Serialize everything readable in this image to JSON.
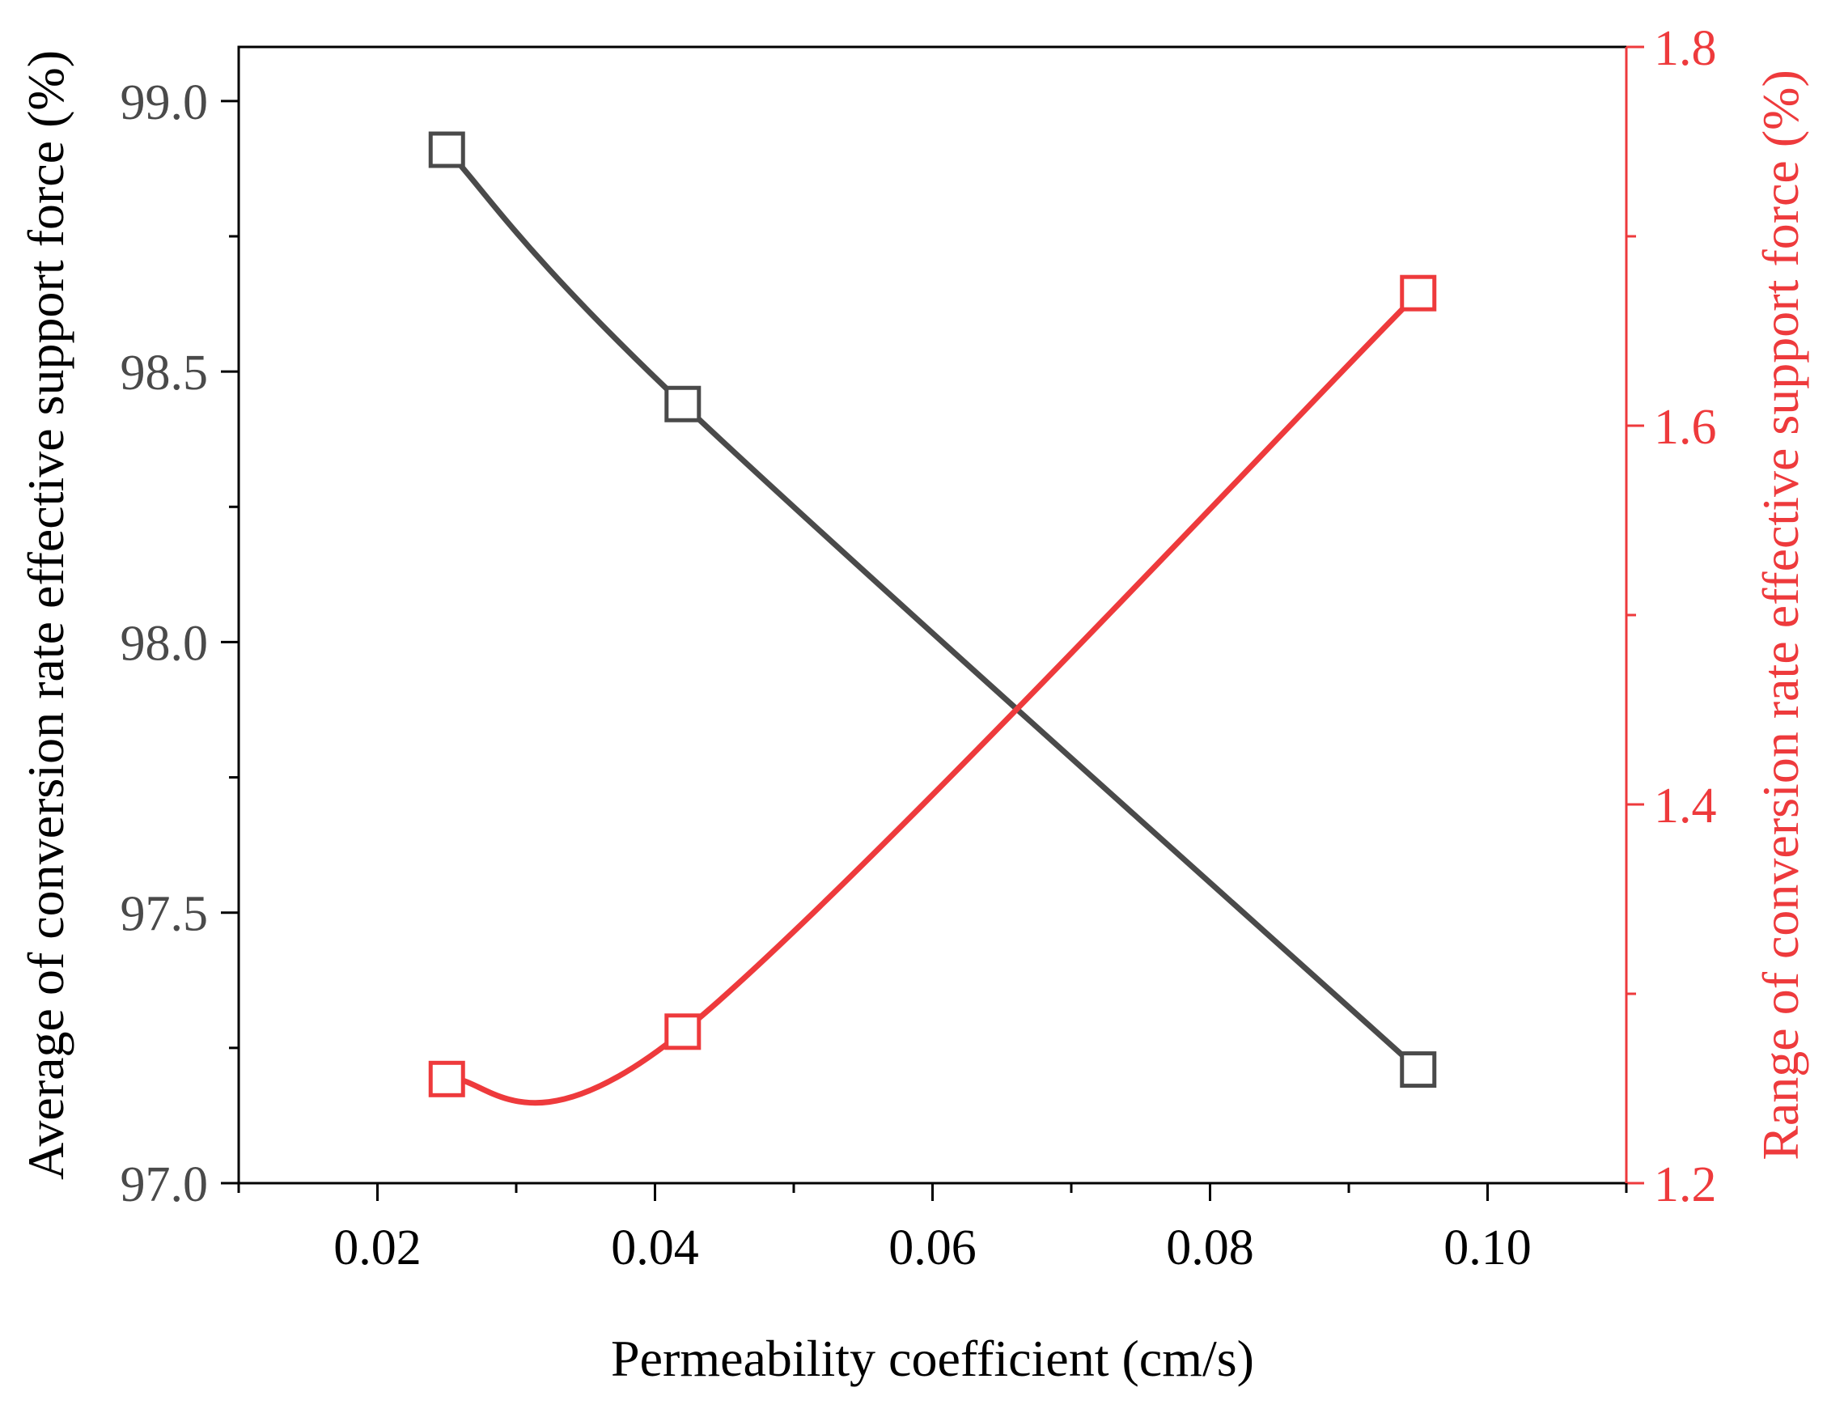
{
  "chart_data": {
    "type": "line",
    "title": "",
    "xlabel": "Permeability coefficient (cm/s)",
    "xlim": [
      0.01,
      0.11
    ],
    "x_ticks": [
      0.02,
      0.04,
      0.06,
      0.08,
      0.1
    ],
    "x_tick_labels": [
      "0.02",
      "0.04",
      "0.06",
      "0.08",
      "0.10"
    ],
    "y_left": {
      "label": "Average of conversion rate effective support force (%)",
      "lim": [
        97.0,
        99.1
      ],
      "ticks": [
        97.0,
        97.5,
        98.0,
        98.5,
        99.0
      ],
      "tick_labels": [
        "97.0",
        "97.5",
        "98.0",
        "98.5",
        "99.0"
      ],
      "color": "#4a4a4a"
    },
    "y_right": {
      "label": "Range of conversion rate effective support force (%)",
      "lim": [
        1.2,
        1.8
      ],
      "ticks": [
        1.2,
        1.4,
        1.6,
        1.8
      ],
      "tick_labels": [
        "1.2",
        "1.4",
        "1.6",
        "1.8"
      ],
      "color": "#ee3a3c"
    },
    "series": [
      {
        "name": "Average",
        "axis": "left",
        "color": "#4a4a4a",
        "marker": "square-open",
        "x": [
          0.025,
          0.042,
          0.095
        ],
        "values": [
          98.91,
          98.44,
          97.21
        ]
      },
      {
        "name": "Range",
        "axis": "right",
        "color": "#ee3a3c",
        "marker": "square-open",
        "x": [
          0.025,
          0.042,
          0.095
        ],
        "values": [
          1.255,
          1.28,
          1.67
        ]
      }
    ]
  }
}
